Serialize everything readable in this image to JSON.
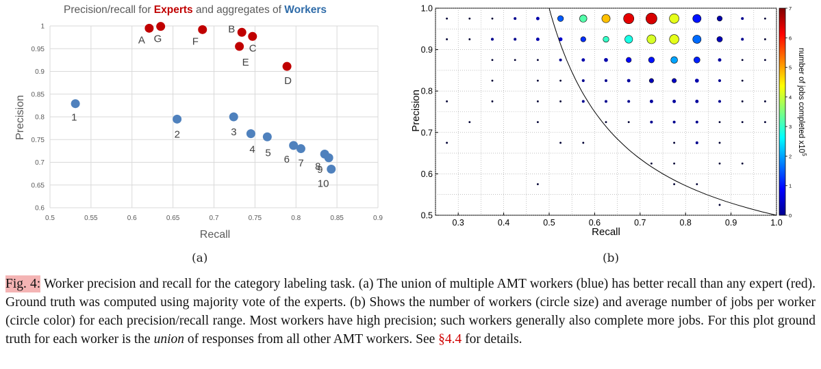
{
  "chart_data": [
    {
      "type": "scatter",
      "title_parts": [
        "Precision/recall for ",
        "Experts",
        " and aggregates of ",
        "Workers"
      ],
      "xlabel": "Recall",
      "ylabel": "Precision",
      "xlim": [
        0.5,
        0.9
      ],
      "ylim": [
        0.6,
        1.0
      ],
      "xticks": [
        "0.5",
        "0.55",
        "0.6",
        "0.65",
        "0.7",
        "0.75",
        "0.8",
        "0.85",
        "0.9"
      ],
      "yticks": [
        "0.6",
        "0.65",
        "0.7",
        "0.75",
        "0.8",
        "0.85",
        "0.9",
        "0.95",
        "1"
      ],
      "grid": true,
      "colors": {
        "experts": "#c00000",
        "workers": "#4f81bd",
        "title_experts": "#c00000",
        "title_workers": "#2e6ba8"
      },
      "series": [
        {
          "name": "Experts",
          "points": [
            {
              "label": "A",
              "x": 0.621,
              "y": 0.995
            },
            {
              "label": "G",
              "x": 0.635,
              "y": 0.999
            },
            {
              "label": "F",
              "x": 0.686,
              "y": 0.992
            },
            {
              "label": "B",
              "x": 0.734,
              "y": 0.986
            },
            {
              "label": "C",
              "x": 0.747,
              "y": 0.977
            },
            {
              "label": "E",
              "x": 0.731,
              "y": 0.955
            },
            {
              "label": "D",
              "x": 0.789,
              "y": 0.911
            }
          ]
        },
        {
          "name": "Workers",
          "points": [
            {
              "label": "1",
              "x": 0.531,
              "y": 0.829
            },
            {
              "label": "2",
              "x": 0.655,
              "y": 0.795
            },
            {
              "label": "3",
              "x": 0.724,
              "y": 0.8
            },
            {
              "label": "4",
              "x": 0.745,
              "y": 0.763
            },
            {
              "label": "5",
              "x": 0.765,
              "y": 0.756
            },
            {
              "label": "6",
              "x": 0.797,
              "y": 0.737
            },
            {
              "label": "7",
              "x": 0.806,
              "y": 0.73
            },
            {
              "label": "8",
              "x": 0.835,
              "y": 0.718
            },
            {
              "label": "9",
              "x": 0.84,
              "y": 0.71
            },
            {
              "label": "10",
              "x": 0.843,
              "y": 0.685
            }
          ]
        }
      ]
    },
    {
      "type": "scatter",
      "xlabel": "Recall",
      "ylabel": "Precision",
      "xlim": [
        0.25,
        1.0
      ],
      "ylim": [
        0.5,
        1.0
      ],
      "xticks": [
        "0.3",
        "0.4",
        "0.5",
        "0.6",
        "0.7",
        "0.8",
        "0.9",
        "1.0"
      ],
      "yticks": [
        "0.5",
        "0.6",
        "0.7",
        "0.8",
        "0.9",
        "1.0"
      ],
      "grid": true,
      "colorbar": {
        "label": "number of jobs completed  x10",
        "exponent": "5",
        "min": 0,
        "max": 7,
        "ticks": [
          "0",
          "1",
          "2",
          "3",
          "4",
          "5",
          "6",
          "7"
        ]
      },
      "curve": "F1 = 2/3 boundary",
      "points": [
        {
          "x": 0.275,
          "y": 0.975,
          "n": 1,
          "jobs": 0.0
        },
        {
          "x": 0.325,
          "y": 0.975,
          "n": 1,
          "jobs": 0.0
        },
        {
          "x": 0.375,
          "y": 0.975,
          "n": 1,
          "jobs": 0.0
        },
        {
          "x": 0.425,
          "y": 0.975,
          "n": 2,
          "jobs": 0.1
        },
        {
          "x": 0.475,
          "y": 0.975,
          "n": 3,
          "jobs": 0.3
        },
        {
          "x": 0.525,
          "y": 0.975,
          "n": 9,
          "jobs": 1.5
        },
        {
          "x": 0.575,
          "y": 0.975,
          "n": 14,
          "jobs": 3.2
        },
        {
          "x": 0.625,
          "y": 0.975,
          "n": 18,
          "jobs": 4.8
        },
        {
          "x": 0.675,
          "y": 0.975,
          "n": 28,
          "jobs": 6.3
        },
        {
          "x": 0.725,
          "y": 0.975,
          "n": 32,
          "jobs": 6.4
        },
        {
          "x": 0.775,
          "y": 0.975,
          "n": 24,
          "jobs": 4.2
        },
        {
          "x": 0.825,
          "y": 0.975,
          "n": 18,
          "jobs": 1.0
        },
        {
          "x": 0.875,
          "y": 0.975,
          "n": 7,
          "jobs": 0.3
        },
        {
          "x": 0.925,
          "y": 0.975,
          "n": 2,
          "jobs": 0.1
        },
        {
          "x": 0.975,
          "y": 0.975,
          "n": 1,
          "jobs": 0.0
        },
        {
          "x": 0.275,
          "y": 0.925,
          "n": 1,
          "jobs": 0.0
        },
        {
          "x": 0.325,
          "y": 0.925,
          "n": 1,
          "jobs": 0.0
        },
        {
          "x": 0.375,
          "y": 0.925,
          "n": 2,
          "jobs": 0.1
        },
        {
          "x": 0.425,
          "y": 0.925,
          "n": 2,
          "jobs": 0.1
        },
        {
          "x": 0.475,
          "y": 0.925,
          "n": 3,
          "jobs": 0.3
        },
        {
          "x": 0.525,
          "y": 0.925,
          "n": 4,
          "jobs": 0.5
        },
        {
          "x": 0.575,
          "y": 0.925,
          "n": 7,
          "jobs": 1.2
        },
        {
          "x": 0.625,
          "y": 0.925,
          "n": 9,
          "jobs": 3.0
        },
        {
          "x": 0.675,
          "y": 0.925,
          "n": 16,
          "jobs": 2.8
        },
        {
          "x": 0.725,
          "y": 0.925,
          "n": 21,
          "jobs": 4.1
        },
        {
          "x": 0.775,
          "y": 0.925,
          "n": 23,
          "jobs": 4.2
        },
        {
          "x": 0.825,
          "y": 0.925,
          "n": 18,
          "jobs": 1.6
        },
        {
          "x": 0.875,
          "y": 0.925,
          "n": 8,
          "jobs": 0.4
        },
        {
          "x": 0.925,
          "y": 0.925,
          "n": 2,
          "jobs": 0.1
        },
        {
          "x": 0.975,
          "y": 0.925,
          "n": 1,
          "jobs": 0.0
        },
        {
          "x": 0.375,
          "y": 0.875,
          "n": 1,
          "jobs": 0.0
        },
        {
          "x": 0.425,
          "y": 0.875,
          "n": 1,
          "jobs": 0.0
        },
        {
          "x": 0.475,
          "y": 0.875,
          "n": 1,
          "jobs": 0.1
        },
        {
          "x": 0.525,
          "y": 0.875,
          "n": 2,
          "jobs": 0.1
        },
        {
          "x": 0.575,
          "y": 0.875,
          "n": 3,
          "jobs": 0.3
        },
        {
          "x": 0.625,
          "y": 0.875,
          "n": 4,
          "jobs": 0.3
        },
        {
          "x": 0.675,
          "y": 0.875,
          "n": 7,
          "jobs": 0.9
        },
        {
          "x": 0.725,
          "y": 0.875,
          "n": 9,
          "jobs": 1.0
        },
        {
          "x": 0.775,
          "y": 0.875,
          "n": 12,
          "jobs": 2.0
        },
        {
          "x": 0.825,
          "y": 0.875,
          "n": 10,
          "jobs": 1.1
        },
        {
          "x": 0.875,
          "y": 0.875,
          "n": 3,
          "jobs": 0.2
        },
        {
          "x": 0.925,
          "y": 0.875,
          "n": 1,
          "jobs": 0.0
        },
        {
          "x": 0.975,
          "y": 0.875,
          "n": 1,
          "jobs": 0.0
        },
        {
          "x": 0.375,
          "y": 0.825,
          "n": 1,
          "jobs": 0.0
        },
        {
          "x": 0.475,
          "y": 0.825,
          "n": 1,
          "jobs": 0.0
        },
        {
          "x": 0.525,
          "y": 0.825,
          "n": 1,
          "jobs": 0.1
        },
        {
          "x": 0.575,
          "y": 0.825,
          "n": 2,
          "jobs": 0.1
        },
        {
          "x": 0.625,
          "y": 0.825,
          "n": 2,
          "jobs": 0.1
        },
        {
          "x": 0.675,
          "y": 0.825,
          "n": 3,
          "jobs": 0.2
        },
        {
          "x": 0.725,
          "y": 0.825,
          "n": 5,
          "jobs": 0.4
        },
        {
          "x": 0.775,
          "y": 0.825,
          "n": 5,
          "jobs": 0.5
        },
        {
          "x": 0.825,
          "y": 0.825,
          "n": 4,
          "jobs": 0.3
        },
        {
          "x": 0.875,
          "y": 0.825,
          "n": 2,
          "jobs": 0.1
        },
        {
          "x": 0.925,
          "y": 0.825,
          "n": 1,
          "jobs": 0.0
        },
        {
          "x": 0.275,
          "y": 0.775,
          "n": 1,
          "jobs": 0.0
        },
        {
          "x": 0.375,
          "y": 0.775,
          "n": 1,
          "jobs": 0.0
        },
        {
          "x": 0.475,
          "y": 0.775,
          "n": 1,
          "jobs": 0.0
        },
        {
          "x": 0.525,
          "y": 0.775,
          "n": 1,
          "jobs": 0.0
        },
        {
          "x": 0.575,
          "y": 0.775,
          "n": 2,
          "jobs": 0.1
        },
        {
          "x": 0.625,
          "y": 0.775,
          "n": 2,
          "jobs": 0.1
        },
        {
          "x": 0.675,
          "y": 0.775,
          "n": 2,
          "jobs": 0.1
        },
        {
          "x": 0.725,
          "y": 0.775,
          "n": 3,
          "jobs": 0.2
        },
        {
          "x": 0.775,
          "y": 0.775,
          "n": 3,
          "jobs": 0.2
        },
        {
          "x": 0.825,
          "y": 0.775,
          "n": 3,
          "jobs": 0.2
        },
        {
          "x": 0.875,
          "y": 0.775,
          "n": 2,
          "jobs": 0.1
        },
        {
          "x": 0.925,
          "y": 0.775,
          "n": 1,
          "jobs": 0.0
        },
        {
          "x": 0.975,
          "y": 0.775,
          "n": 1,
          "jobs": 0.0
        },
        {
          "x": 0.325,
          "y": 0.725,
          "n": 1,
          "jobs": 0.0
        },
        {
          "x": 0.475,
          "y": 0.725,
          "n": 1,
          "jobs": 0.0
        },
        {
          "x": 0.625,
          "y": 0.725,
          "n": 1,
          "jobs": 0.0
        },
        {
          "x": 0.675,
          "y": 0.725,
          "n": 1,
          "jobs": 0.0
        },
        {
          "x": 0.725,
          "y": 0.725,
          "n": 2,
          "jobs": 0.1
        },
        {
          "x": 0.775,
          "y": 0.725,
          "n": 2,
          "jobs": 0.1
        },
        {
          "x": 0.825,
          "y": 0.725,
          "n": 2,
          "jobs": 0.1
        },
        {
          "x": 0.875,
          "y": 0.725,
          "n": 1,
          "jobs": 0.0
        },
        {
          "x": 0.925,
          "y": 0.725,
          "n": 1,
          "jobs": 0.0
        },
        {
          "x": 0.975,
          "y": 0.725,
          "n": 1,
          "jobs": 0.0
        },
        {
          "x": 0.275,
          "y": 0.675,
          "n": 1,
          "jobs": 0.0
        },
        {
          "x": 0.525,
          "y": 0.675,
          "n": 1,
          "jobs": 0.0
        },
        {
          "x": 0.575,
          "y": 0.675,
          "n": 1,
          "jobs": 0.0
        },
        {
          "x": 0.775,
          "y": 0.675,
          "n": 1,
          "jobs": 0.0
        },
        {
          "x": 0.825,
          "y": 0.675,
          "n": 2,
          "jobs": 0.1
        },
        {
          "x": 0.875,
          "y": 0.675,
          "n": 1,
          "jobs": 0.0
        },
        {
          "x": 0.725,
          "y": 0.625,
          "n": 1,
          "jobs": 0.0
        },
        {
          "x": 0.775,
          "y": 0.625,
          "n": 1,
          "jobs": 0.0
        },
        {
          "x": 0.875,
          "y": 0.625,
          "n": 1,
          "jobs": 0.0
        },
        {
          "x": 0.925,
          "y": 0.625,
          "n": 1,
          "jobs": 0.0
        },
        {
          "x": 0.475,
          "y": 0.575,
          "n": 1,
          "jobs": 0.0
        },
        {
          "x": 0.775,
          "y": 0.575,
          "n": 1,
          "jobs": 0.0
        },
        {
          "x": 0.825,
          "y": 0.575,
          "n": 1,
          "jobs": 0.0
        },
        {
          "x": 0.875,
          "y": 0.525,
          "n": 1,
          "jobs": 0.0
        }
      ]
    }
  ],
  "labels": {
    "a": "(a)",
    "b": "(b)"
  },
  "caption": {
    "fig": "Fig. 4:",
    "text1": " Worker precision and recall for the category labeling task. (a) The union of multiple AMT workers (blue) has better recall than any expert (red). Ground truth was computed using majority vote of the experts. (b) Shows the number of workers (circle size) and average number of jobs per worker (circle color) for each precision/recall range. Most workers have high precision; such workers generally also complete more jobs. For this plot ground truth for each worker is the ",
    "em": "union",
    "text2": " of responses from all other AMT workers. See ",
    "ref": "§4.4",
    "text3": " for details."
  }
}
